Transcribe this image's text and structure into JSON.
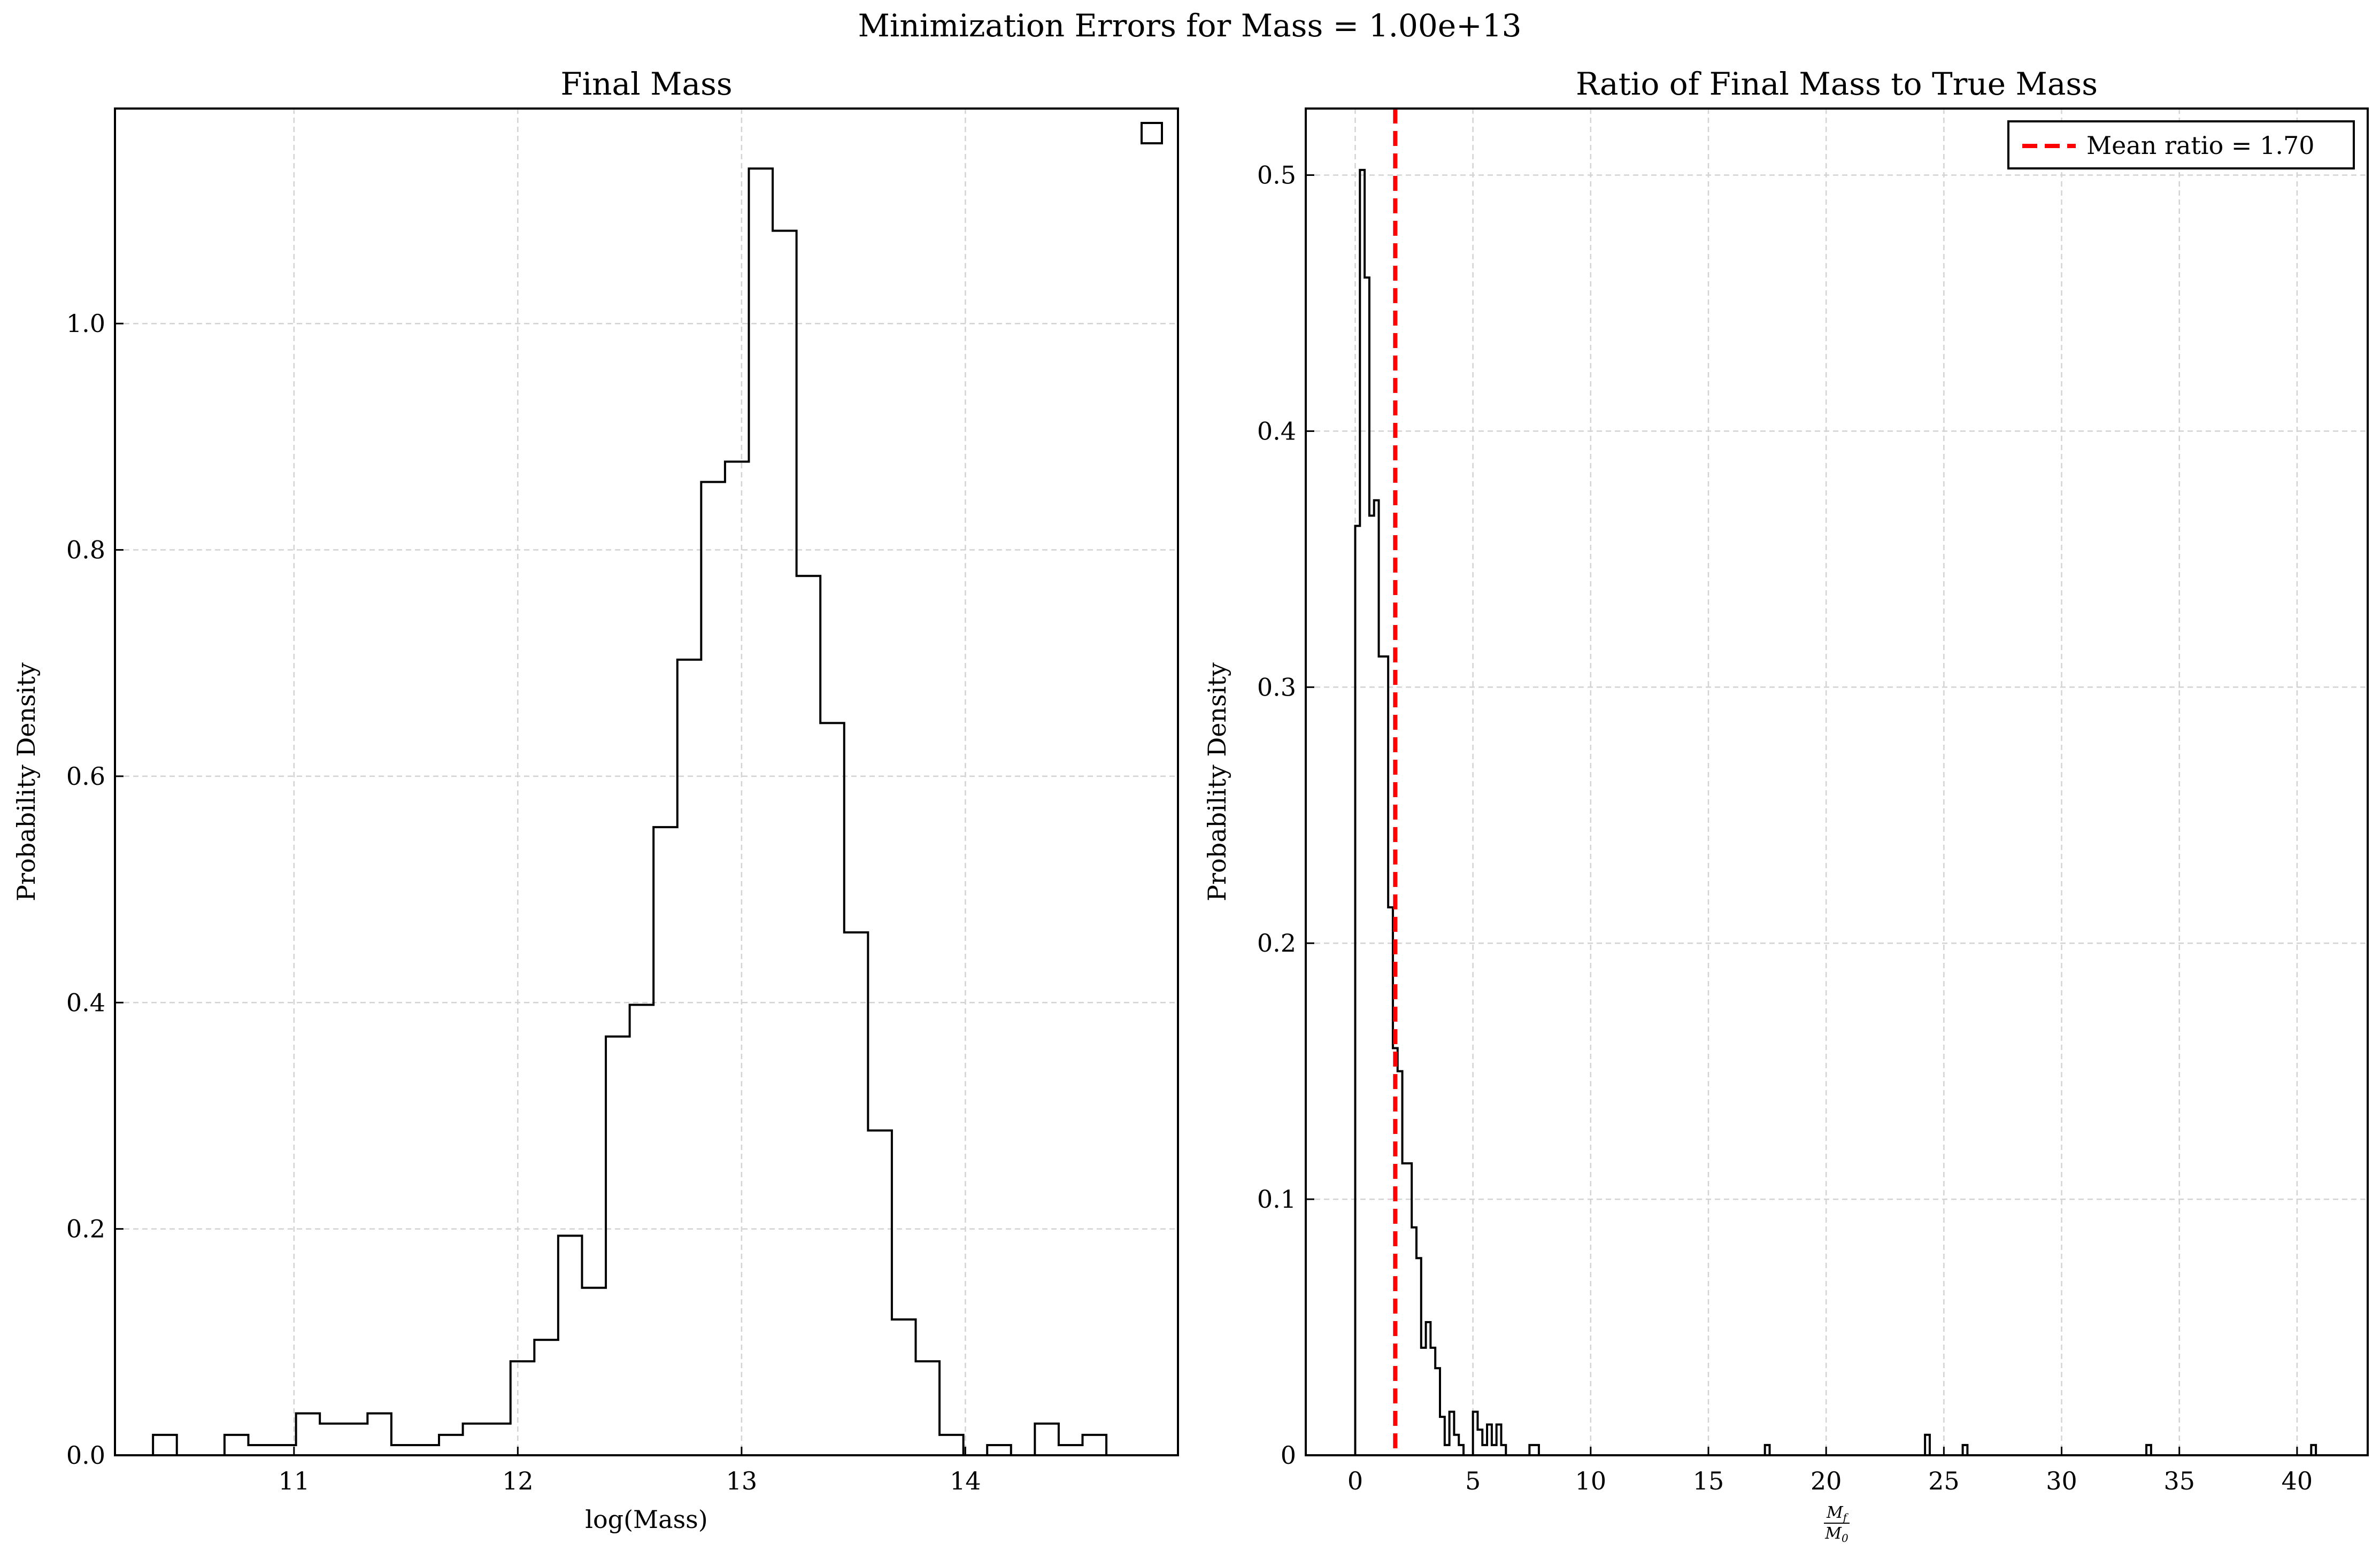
{
  "figure": {
    "suptitle": "Minimization Errors for Mass = 1.00e+13"
  },
  "chart_data": [
    {
      "type": "histogram",
      "title": "Final Mass",
      "xlabel": "log(Mass)",
      "ylabel": "Probability Density",
      "xlim": [
        10.2,
        14.95
      ],
      "ylim": [
        0,
        1.19
      ],
      "xticks": [
        11,
        12,
        13,
        14
      ],
      "yticks": [
        0.0,
        0.2,
        0.4,
        0.6,
        0.8,
        1.0
      ],
      "ytick_labels": [
        "0.0",
        "0.2",
        "0.4",
        "0.6",
        "0.8",
        "1.0"
      ],
      "grid": true,
      "legend": {
        "placement": "upper right",
        "entries": [
          ""
        ]
      },
      "bin_start": 10.37,
      "bin_width": 0.1065,
      "densities": [
        0.018,
        0,
        0,
        0.018,
        0.009,
        0.009,
        0.037,
        0.028,
        0.028,
        0.037,
        0.009,
        0.009,
        0.018,
        0.028,
        0.028,
        0.083,
        0.102,
        0.194,
        0.148,
        0.37,
        0.398,
        0.555,
        0.703,
        0.86,
        0.878,
        1.137,
        1.082,
        0.777,
        0.647,
        0.462,
        0.287,
        0.12,
        0.083,
        0.018,
        0,
        0.009,
        0,
        0.028,
        0.009,
        0.018
      ]
    },
    {
      "type": "histogram",
      "title": "Ratio of Final Mass to True Mass",
      "xlabel": "M_f / M_0",
      "xlabel_num": "M",
      "xlabel_num_sub": "f",
      "xlabel_den": "M",
      "xlabel_den_sub": "0",
      "ylabel": "Probability Density",
      "xlim": [
        -2.1,
        43.0
      ],
      "ylim": [
        0,
        0.526
      ],
      "xticks": [
        0,
        5,
        10,
        15,
        20,
        25,
        30,
        35,
        40
      ],
      "yticks": [
        0.0,
        0.1,
        0.2,
        0.3,
        0.4,
        0.5
      ],
      "grid": true,
      "legend": {
        "placement": "upper right",
        "entries": [
          "Mean ratio = 1.70"
        ]
      },
      "mean_line": {
        "x": 1.7,
        "color": "#ff0000",
        "style": "dashed",
        "label": "Mean ratio = 1.70"
      },
      "bin_start": 0.0,
      "bin_width": 0.2,
      "densities": [
        0.363,
        0.502,
        0.46,
        0.367,
        0.373,
        0.312,
        0.312,
        0.214,
        0.159,
        0.15,
        0.114,
        0.114,
        0.089,
        0.077,
        0.042,
        0.052,
        0.042,
        0.034,
        0.015,
        0.004,
        0.017,
        0.008,
        0.004,
        0,
        0,
        0.017,
        0.01,
        0.004,
        0.012,
        0.004,
        0.012,
        0.004,
        0,
        0,
        0,
        0,
        0,
        0.004,
        0.004
      ],
      "outliers": [
        {
          "x": 17.4,
          "density": 0.004
        },
        {
          "x": 24.2,
          "density": 0.008
        },
        {
          "x": 25.8,
          "density": 0.004
        },
        {
          "x": 33.6,
          "density": 0.004
        },
        {
          "x": 40.6,
          "density": 0.004
        }
      ]
    }
  ]
}
